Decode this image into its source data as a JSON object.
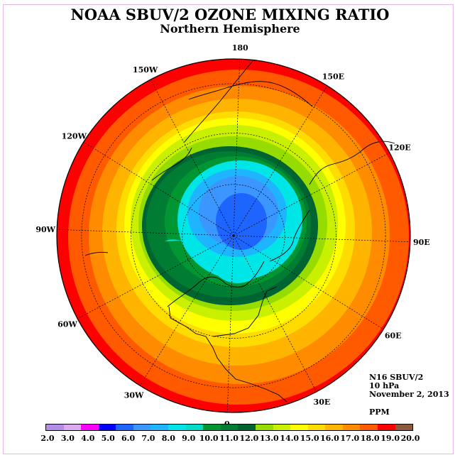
{
  "header": {
    "title": "NOAA SBUV/2 OZONE MIXING RATIO",
    "subtitle": "Northern Hemisphere"
  },
  "longitude_labels": [
    {
      "text": "0",
      "lon": 0
    },
    {
      "text": "30E",
      "lon": 30
    },
    {
      "text": "60E",
      "lon": 60
    },
    {
      "text": "90E",
      "lon": 90
    },
    {
      "text": "120E",
      "lon": 120
    },
    {
      "text": "150E",
      "lon": 150
    },
    {
      "text": "180",
      "lon": 180
    },
    {
      "text": "150W",
      "lon": -150
    },
    {
      "text": "120W",
      "lon": -120
    },
    {
      "text": "90W",
      "lon": -90
    },
    {
      "text": "60W",
      "lon": -60
    },
    {
      "text": "30W",
      "lon": -30
    }
  ],
  "info": {
    "instrument": "N16 SBUV/2",
    "level": "10 hPa",
    "date": "November 2, 2013",
    "units": "PPM"
  },
  "colorbar": {
    "ticks": [
      "2.0",
      "3.0",
      "4.0",
      "5.0",
      "6.0",
      "7.0",
      "8.0",
      "9.0",
      "10.0",
      "11.0",
      "12.0",
      "13.0",
      "14.0",
      "15.0",
      "16.0",
      "17.0",
      "18.0",
      "19.0",
      "20.0"
    ],
    "colors": [
      "#b28ee6",
      "#dcaaf0",
      "#ff00ff",
      "#0000ff",
      "#1e64ff",
      "#3c96ff",
      "#1eb4ff",
      "#00e6e6",
      "#00dcc8",
      "#009632",
      "#007d32",
      "#006432",
      "#96dc00",
      "#c8f000",
      "#ffff00",
      "#ffdc00",
      "#ffb400",
      "#ff8c00",
      "#ff5a00",
      "#ff0000",
      "#8b5a3c"
    ]
  },
  "chart_data": {
    "type": "heatmap",
    "projection": "north polar stereographic",
    "variable": "ozone mixing ratio",
    "units": "PPM",
    "pressure_level": "10 hPa",
    "date": "November 2, 2013",
    "instrument": "N16 SBUV/2",
    "levels": [
      2,
      3,
      4,
      5,
      6,
      7,
      8,
      9,
      10,
      11,
      12,
      13,
      14,
      15,
      16,
      17,
      18,
      19,
      20
    ],
    "field_description": {
      "pole_region_value_range": [
        5,
        8
      ],
      "outer_ring_value_range": [
        18,
        20
      ]
    }
  }
}
